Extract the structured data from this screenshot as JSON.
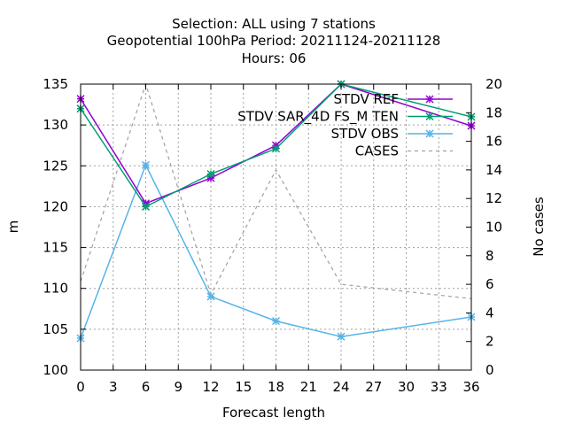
{
  "title_lines": [
    "Selection: ALL using     7 stations",
    "Geopotential 100hPa   Period: 20211124-20211128",
    "Hours:  06"
  ],
  "chart_data": {
    "type": "line",
    "xlabel": "Forecast length",
    "ylabel": "m",
    "y2label": "No cases",
    "xlim": [
      0,
      36
    ],
    "ylim": [
      100,
      135
    ],
    "y2lim": [
      0,
      20
    ],
    "xticks": [
      0,
      3,
      6,
      9,
      12,
      15,
      18,
      21,
      24,
      27,
      30,
      33,
      36
    ],
    "yticks": [
      100,
      105,
      110,
      115,
      120,
      125,
      130,
      135
    ],
    "y2ticks": [
      0,
      2,
      4,
      6,
      8,
      10,
      12,
      14,
      16,
      18,
      20
    ],
    "grid": true,
    "legend_position": "top-right",
    "series": [
      {
        "name": "STDV REF",
        "axis": "y",
        "color": "#9400d3",
        "style": "solid",
        "marker": "x-star",
        "x": [
          0,
          6,
          12,
          18,
          24,
          36
        ],
        "values": [
          133.2,
          120.4,
          123.5,
          127.5,
          135.0,
          129.9
        ]
      },
      {
        "name": "STDV SAR_4D FS_M TEN",
        "axis": "y",
        "color": "#009e73",
        "style": "solid",
        "marker": "x-star",
        "x": [
          0,
          6,
          12,
          18,
          24,
          36
        ],
        "values": [
          132.0,
          120.0,
          124.0,
          127.1,
          135.0,
          131.0
        ]
      },
      {
        "name": "STDV OBS",
        "axis": "y",
        "color": "#56b4e9",
        "style": "solid",
        "marker": "x-star",
        "x": [
          0,
          6,
          12,
          18,
          24,
          36
        ],
        "values": [
          103.9,
          125.1,
          109.0,
          106.0,
          104.1,
          106.5
        ]
      },
      {
        "name": "CASES",
        "axis": "y2",
        "color": "#a0a0a0",
        "style": "dashed",
        "marker": "none",
        "x": [
          0,
          6,
          12,
          18,
          24,
          36
        ],
        "values": [
          6.2,
          20.0,
          5.3,
          14.0,
          6.0,
          5.0
        ]
      }
    ]
  }
}
